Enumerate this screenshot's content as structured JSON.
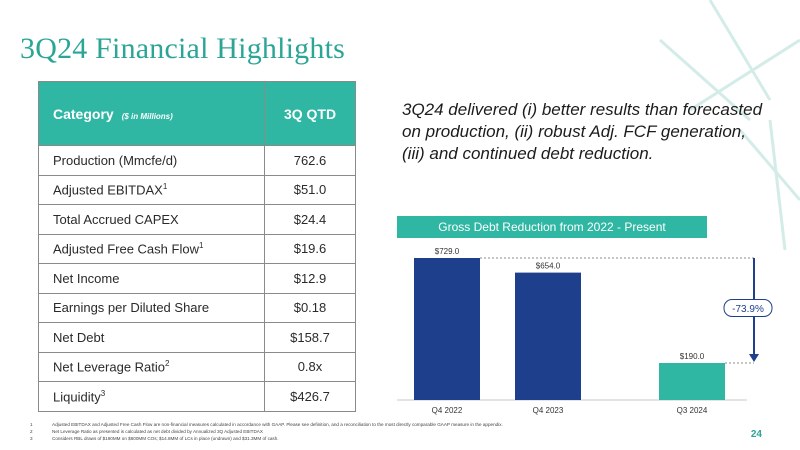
{
  "page": {
    "title": "3Q24 Financial Highlights",
    "page_number": "24"
  },
  "table": {
    "header_category": "Category",
    "header_unit": "($ in Millions)",
    "header_period": "3Q QTD",
    "rows": [
      {
        "label": "Production (Mmcfe/d)",
        "sup": "",
        "value": "762.6"
      },
      {
        "label": "Adjusted EBITDAX",
        "sup": "1",
        "value": "$51.0"
      },
      {
        "label": "Total Accrued CAPEX",
        "sup": "",
        "value": "$24.4"
      },
      {
        "label": "Adjusted Free Cash Flow",
        "sup": "1",
        "value": "$19.6"
      },
      {
        "label": "Net Income",
        "sup": "",
        "value": "$12.9"
      },
      {
        "label": "Earnings per Diluted Share",
        "sup": "",
        "value": "$0.18"
      },
      {
        "label": "Net Debt",
        "sup": "",
        "value": "$158.7"
      },
      {
        "label": "Net Leverage Ratio",
        "sup": "2",
        "value": "0.8x"
      },
      {
        "label": "Liquidity",
        "sup": "3",
        "value": "$426.7"
      }
    ]
  },
  "statement": "3Q24 delivered (i) better results than forecasted on production, (ii) robust Adj. FCF generation, (iii) and continued debt reduction.",
  "chart_data": {
    "type": "bar",
    "title": "Gross Debt Reduction from 2022 - Present",
    "categories": [
      "Q4 2022",
      "Q4 2023",
      "Q3 2024"
    ],
    "values": [
      729.0,
      654.0,
      190.0
    ],
    "data_labels": [
      "$729.0",
      "$654.0",
      "$190.0"
    ],
    "bar_colors": [
      "#1e3f8c",
      "#1e3f8c",
      "#2fb7a4"
    ],
    "ylim": [
      0,
      729
    ],
    "grid": false,
    "annotation": "-73.9%"
  },
  "footnotes": [
    {
      "num": "1",
      "text": "Adjusted EBITDAX and Adjusted Free Cash Flow are non-financial measures calculated in accordance with GAAP. Please see definition, and a reconciliation to the most directly comparable GAAP measure in the appendix."
    },
    {
      "num": "2",
      "text": "Net Leverage Ratio as presented is calculated as net debt divided by Annualized 3Q Adjusted EBITDAX"
    },
    {
      "num": "3",
      "text": "Considers RBL draws of $190MM on $600MM COs; $14.8MM of LCs in place (undrawn) and $31.3MM of cash."
    }
  ],
  "colors": {
    "accent": "#2fb7a4",
    "title": "#2aa596",
    "bar_dark": "#1e3f8c"
  }
}
